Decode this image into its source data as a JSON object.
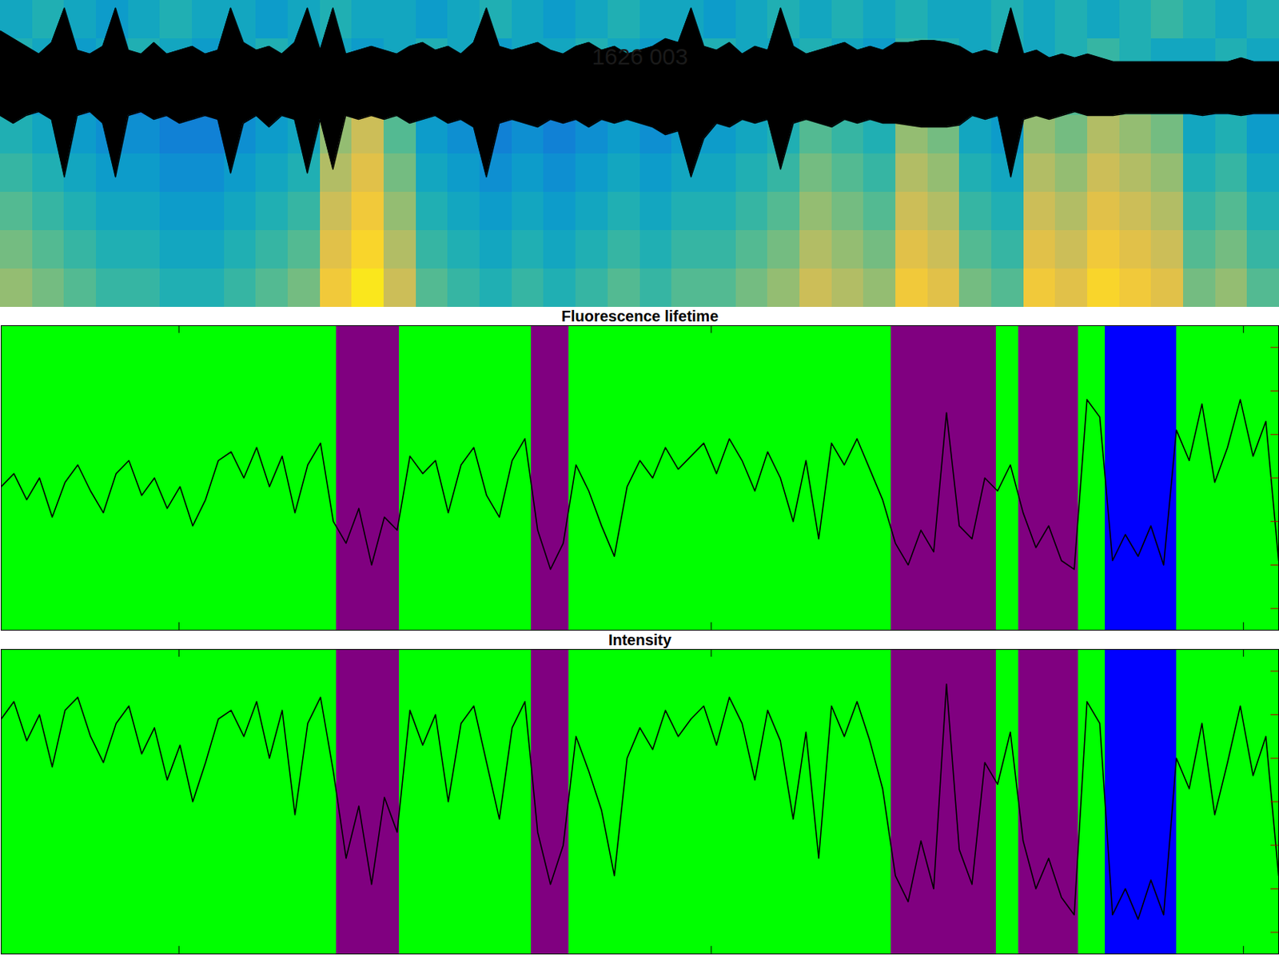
{
  "chart_data": [
    {
      "type": "heatmap",
      "title": "1626 003",
      "tick_labels": false,
      "xlim": [
        0,
        1200
      ],
      "ylim": [
        0,
        8
      ],
      "clim": [
        0,
        1
      ],
      "cells": [
        [
          0.65,
          0.6,
          0.55,
          0.5,
          0.5,
          0.45,
          0.45,
          0.5,
          0.55,
          0.6,
          0.85,
          0.95,
          0.75,
          0.55,
          0.5,
          0.45,
          0.5,
          0.45,
          0.5,
          0.55,
          0.5,
          0.55,
          0.55,
          0.6,
          0.65,
          0.75,
          0.7,
          0.65,
          0.85,
          0.8,
          0.6,
          0.55,
          0.85,
          0.8,
          0.9,
          0.85,
          0.8,
          0.6,
          0.65,
          0.55
        ],
        [
          0.6,
          0.55,
          0.5,
          0.45,
          0.45,
          0.4,
          0.4,
          0.45,
          0.5,
          0.55,
          0.8,
          0.9,
          0.7,
          0.5,
          0.45,
          0.4,
          0.45,
          0.4,
          0.45,
          0.5,
          0.45,
          0.5,
          0.5,
          0.55,
          0.6,
          0.7,
          0.65,
          0.6,
          0.8,
          0.75,
          0.55,
          0.5,
          0.8,
          0.75,
          0.85,
          0.8,
          0.75,
          0.55,
          0.6,
          0.5
        ],
        [
          0.55,
          0.5,
          0.45,
          0.4,
          0.4,
          0.35,
          0.35,
          0.4,
          0.45,
          0.5,
          0.75,
          0.85,
          0.65,
          0.45,
          0.4,
          0.35,
          0.4,
          0.35,
          0.4,
          0.45,
          0.4,
          0.45,
          0.45,
          0.5,
          0.55,
          0.65,
          0.6,
          0.55,
          0.75,
          0.7,
          0.5,
          0.45,
          0.75,
          0.7,
          0.8,
          0.75,
          0.7,
          0.5,
          0.55,
          0.45
        ],
        [
          0.5,
          0.45,
          0.4,
          0.35,
          0.35,
          0.3,
          0.3,
          0.35,
          0.4,
          0.45,
          0.7,
          0.8,
          0.6,
          0.4,
          0.35,
          0.3,
          0.35,
          0.3,
          0.35,
          0.4,
          0.35,
          0.4,
          0.4,
          0.45,
          0.5,
          0.6,
          0.55,
          0.5,
          0.7,
          0.65,
          0.45,
          0.4,
          0.7,
          0.65,
          0.75,
          0.7,
          0.65,
          0.45,
          0.5,
          0.4
        ],
        [
          0.45,
          0.4,
          0.35,
          0.3,
          0.3,
          0.25,
          0.25,
          0.3,
          0.35,
          0.4,
          0.65,
          0.75,
          0.55,
          0.35,
          0.3,
          0.25,
          0.3,
          0.25,
          0.3,
          0.35,
          0.3,
          0.35,
          0.35,
          0.4,
          0.45,
          0.55,
          0.5,
          0.45,
          0.65,
          0.6,
          0.4,
          0.35,
          0.65,
          0.6,
          0.7,
          0.65,
          0.6,
          0.4,
          0.45,
          0.35
        ],
        [
          0.4,
          0.35,
          0.3,
          0.25,
          0.25,
          0.2,
          0.2,
          0.25,
          0.3,
          0.35,
          0.6,
          0.7,
          0.5,
          0.3,
          0.25,
          0.2,
          0.25,
          0.2,
          0.25,
          0.3,
          0.25,
          0.3,
          0.3,
          0.35,
          0.4,
          0.5,
          0.45,
          0.4,
          0.6,
          0.55,
          0.35,
          0.3,
          0.6,
          0.55,
          0.65,
          0.6,
          0.55,
          0.35,
          0.4,
          0.3
        ],
        [
          0.45,
          0.4,
          0.35,
          0.4,
          0.45,
          0.4,
          0.35,
          0.4,
          0.45,
          0.4,
          0.4,
          0.35,
          0.4,
          0.45,
          0.4,
          0.35,
          0.4,
          0.4,
          0.45,
          0.4,
          0.35,
          0.4,
          0.45,
          0.4,
          0.4,
          0.45,
          0.4,
          0.35,
          0.5,
          0.45,
          0.4,
          0.45,
          0.4,
          0.45,
          0.5,
          0.45,
          0.4,
          0.4,
          0.45,
          0.4
        ],
        [
          0.4,
          0.45,
          0.4,
          0.35,
          0.4,
          0.45,
          0.4,
          0.4,
          0.35,
          0.4,
          0.45,
          0.4,
          0.4,
          0.35,
          0.4,
          0.45,
          0.4,
          0.35,
          0.4,
          0.45,
          0.4,
          0.4,
          0.35,
          0.4,
          0.45,
          0.4,
          0.45,
          0.4,
          0.45,
          0.4,
          0.4,
          0.45,
          0.4,
          0.45,
          0.4,
          0.45,
          0.5,
          0.45,
          0.4,
          0.45
        ]
      ],
      "trace": {
        "color": "#000000",
        "x": [
          0,
          12,
          24,
          36,
          48,
          60,
          72,
          84,
          96,
          108,
          120,
          132,
          144,
          156,
          168,
          180,
          192,
          204,
          216,
          228,
          240,
          252,
          264,
          276,
          288,
          300,
          312,
          324,
          336,
          348,
          360,
          372,
          384,
          396,
          408,
          420,
          432,
          444,
          456,
          468,
          480,
          492,
          504,
          516,
          528,
          540,
          552,
          564,
          576,
          588,
          600,
          612,
          624,
          636,
          648,
          660,
          672,
          684,
          696,
          708,
          720,
          732,
          744,
          756,
          768,
          780,
          792,
          804,
          816,
          828,
          840,
          852,
          864,
          876,
          888,
          900,
          912,
          924,
          936,
          948,
          960,
          972,
          984,
          996,
          1008,
          1020,
          1032,
          1044,
          1056,
          1068,
          1080,
          1092,
          1104,
          1116,
          1128,
          1140,
          1152,
          1164,
          1176,
          1188,
          1200
        ],
        "upper": [
          7.2,
          7.0,
          6.8,
          6.6,
          6.9,
          7.8,
          6.7,
          6.6,
          6.8,
          7.8,
          6.7,
          6.6,
          6.9,
          6.6,
          6.7,
          6.8,
          6.6,
          6.7,
          7.8,
          6.9,
          6.7,
          6.8,
          6.6,
          6.9,
          7.8,
          6.7,
          7.8,
          6.6,
          6.7,
          6.8,
          6.7,
          6.6,
          6.8,
          6.9,
          6.7,
          6.8,
          6.6,
          6.9,
          7.8,
          6.8,
          6.7,
          6.8,
          6.9,
          6.7,
          6.6,
          6.8,
          6.9,
          6.7,
          6.8,
          6.6,
          6.7,
          6.8,
          7.0,
          6.9,
          7.8,
          6.8,
          6.7,
          6.9,
          6.6,
          6.8,
          6.7,
          7.8,
          6.8,
          6.6,
          6.7,
          6.8,
          6.9,
          6.7,
          6.8,
          6.7,
          6.9,
          6.9,
          6.95,
          6.95,
          6.9,
          6.8,
          6.6,
          6.7,
          6.6,
          7.8,
          6.6,
          6.7,
          6.5,
          6.6,
          6.5,
          6.6,
          6.5,
          6.4,
          6.4,
          6.4,
          6.4,
          6.4,
          6.4,
          6.4,
          6.4,
          6.4,
          6.4,
          6.5,
          6.4,
          6.4,
          6.4
        ],
        "lower": [
          5.0,
          4.8,
          5.0,
          5.1,
          4.9,
          3.4,
          5.0,
          5.1,
          4.8,
          3.4,
          5.0,
          5.1,
          4.9,
          5.0,
          4.8,
          4.9,
          5.0,
          4.9,
          3.5,
          4.8,
          5.0,
          4.7,
          5.0,
          4.9,
          3.5,
          4.9,
          3.6,
          5.0,
          4.9,
          5.0,
          4.9,
          5.0,
          4.8,
          4.9,
          5.0,
          4.8,
          4.9,
          4.7,
          3.4,
          4.8,
          4.9,
          4.8,
          4.7,
          4.9,
          4.8,
          4.9,
          4.7,
          4.9,
          4.8,
          4.9,
          4.8,
          4.7,
          4.5,
          4.6,
          3.4,
          4.4,
          4.8,
          4.7,
          4.9,
          4.8,
          4.9,
          3.6,
          4.8,
          4.9,
          4.8,
          4.7,
          4.9,
          4.8,
          4.9,
          4.8,
          4.8,
          4.75,
          4.7,
          4.7,
          4.7,
          4.75,
          5.0,
          4.9,
          5.0,
          3.4,
          4.9,
          5.0,
          4.9,
          5.0,
          5.1,
          5.0,
          5.0,
          5.0,
          5.05,
          5.05,
          5.05,
          5.05,
          5.05,
          5.05,
          5.0,
          5.05,
          5.05,
          5.0,
          5.05,
          5.05,
          5.05
        ]
      }
    },
    {
      "type": "line",
      "title": "Fluorescence lifetime",
      "tick_labels": false,
      "color": "#000000",
      "xlim": [
        0,
        1200
      ],
      "xticks": [
        167,
        667,
        1167
      ],
      "ylim": [
        0,
        7
      ],
      "yticks": [
        0.5,
        1.5,
        2.5,
        3.5,
        4.5,
        5.5,
        6.5
      ],
      "bands": [
        {
          "x1": 0,
          "x2": 315,
          "color": "#00ff00"
        },
        {
          "x1": 315,
          "x2": 374,
          "color": "#800080"
        },
        {
          "x1": 374,
          "x2": 498,
          "color": "#00ff00"
        },
        {
          "x1": 498,
          "x2": 533,
          "color": "#800080"
        },
        {
          "x1": 533,
          "x2": 836,
          "color": "#00ff00"
        },
        {
          "x1": 836,
          "x2": 935,
          "color": "#800080"
        },
        {
          "x1": 935,
          "x2": 956,
          "color": "#00ff00"
        },
        {
          "x1": 956,
          "x2": 1012,
          "color": "#800080"
        },
        {
          "x1": 1012,
          "x2": 1037,
          "color": "#00ff00"
        },
        {
          "x1": 1037,
          "x2": 1104,
          "color": "#0000ff"
        },
        {
          "x1": 1104,
          "x2": 1200,
          "color": "#00ff00"
        }
      ],
      "x": [
        0,
        12,
        24,
        36,
        48,
        60,
        72,
        84,
        96,
        108,
        120,
        132,
        144,
        156,
        168,
        180,
        192,
        204,
        216,
        228,
        240,
        252,
        264,
        276,
        288,
        300,
        312,
        324,
        336,
        348,
        360,
        372,
        384,
        396,
        408,
        420,
        432,
        444,
        456,
        468,
        480,
        492,
        504,
        516,
        528,
        540,
        552,
        564,
        576,
        588,
        600,
        612,
        624,
        636,
        648,
        660,
        672,
        684,
        696,
        708,
        720,
        732,
        744,
        756,
        768,
        780,
        792,
        804,
        816,
        828,
        840,
        852,
        864,
        876,
        888,
        900,
        912,
        924,
        936,
        948,
        960,
        972,
        984,
        996,
        1008,
        1020,
        1032,
        1044,
        1056,
        1068,
        1080,
        1092,
        1104,
        1116,
        1128,
        1140,
        1152,
        1164,
        1176,
        1188,
        1200
      ],
      "values": [
        3.3,
        3.6,
        3.0,
        3.5,
        2.6,
        3.4,
        3.8,
        3.2,
        2.7,
        3.6,
        3.9,
        3.1,
        3.5,
        2.8,
        3.3,
        2.4,
        3.0,
        3.9,
        4.1,
        3.5,
        4.2,
        3.3,
        4.0,
        2.7,
        3.8,
        4.3,
        2.5,
        2.0,
        2.8,
        1.5,
        2.6,
        2.3,
        4.0,
        3.6,
        3.9,
        2.7,
        3.8,
        4.2,
        3.1,
        2.6,
        3.9,
        4.4,
        2.3,
        1.4,
        2.0,
        3.8,
        3.2,
        2.4,
        1.7,
        3.3,
        3.9,
        3.5,
        4.2,
        3.7,
        4.0,
        4.3,
        3.6,
        4.4,
        3.9,
        3.2,
        4.1,
        3.5,
        2.5,
        3.9,
        2.1,
        4.3,
        3.8,
        4.4,
        3.7,
        3.0,
        2.0,
        1.5,
        2.3,
        1.8,
        5.0,
        2.4,
        2.1,
        3.5,
        3.2,
        3.8,
        2.7,
        1.9,
        2.4,
        1.6,
        1.4,
        5.3,
        4.9,
        1.6,
        2.2,
        1.7,
        2.4,
        1.5,
        4.6,
        3.9,
        5.2,
        3.4,
        4.2,
        5.3,
        4.0,
        4.8,
        1.6
      ]
    },
    {
      "type": "line",
      "title": "Intensity",
      "tick_labels": false,
      "color": "#000000",
      "xlim": [
        0,
        1200
      ],
      "xticks": [
        167,
        667,
        1167
      ],
      "ylim": [
        0,
        7
      ],
      "yticks": [
        0.5,
        1.5,
        2.5,
        3.5,
        4.5,
        5.5,
        6.5
      ],
      "bands": [
        {
          "x1": 0,
          "x2": 315,
          "color": "#00ff00"
        },
        {
          "x1": 315,
          "x2": 374,
          "color": "#800080"
        },
        {
          "x1": 374,
          "x2": 498,
          "color": "#00ff00"
        },
        {
          "x1": 498,
          "x2": 533,
          "color": "#800080"
        },
        {
          "x1": 533,
          "x2": 836,
          "color": "#00ff00"
        },
        {
          "x1": 836,
          "x2": 935,
          "color": "#800080"
        },
        {
          "x1": 935,
          "x2": 956,
          "color": "#00ff00"
        },
        {
          "x1": 956,
          "x2": 1012,
          "color": "#800080"
        },
        {
          "x1": 1012,
          "x2": 1037,
          "color": "#00ff00"
        },
        {
          "x1": 1037,
          "x2": 1104,
          "color": "#0000ff"
        },
        {
          "x1": 1104,
          "x2": 1200,
          "color": "#00ff00"
        }
      ],
      "x": [
        0,
        12,
        24,
        36,
        48,
        60,
        72,
        84,
        96,
        108,
        120,
        132,
        144,
        156,
        168,
        180,
        192,
        204,
        216,
        228,
        240,
        252,
        264,
        276,
        288,
        300,
        312,
        324,
        336,
        348,
        360,
        372,
        384,
        396,
        408,
        420,
        432,
        444,
        456,
        468,
        480,
        492,
        504,
        516,
        528,
        540,
        552,
        564,
        576,
        588,
        600,
        612,
        624,
        636,
        648,
        660,
        672,
        684,
        696,
        708,
        720,
        732,
        744,
        756,
        768,
        780,
        792,
        804,
        816,
        828,
        840,
        852,
        864,
        876,
        888,
        900,
        912,
        924,
        936,
        948,
        960,
        972,
        984,
        996,
        1008,
        1020,
        1032,
        1044,
        1056,
        1068,
        1080,
        1092,
        1104,
        1116,
        1128,
        1140,
        1152,
        1164,
        1176,
        1188,
        1200
      ],
      "values": [
        5.4,
        5.8,
        4.9,
        5.5,
        4.3,
        5.6,
        5.9,
        5.0,
        4.4,
        5.3,
        5.7,
        4.6,
        5.2,
        4.0,
        4.8,
        3.5,
        4.4,
        5.4,
        5.6,
        5.0,
        5.8,
        4.5,
        5.6,
        3.2,
        5.3,
        5.9,
        4.2,
        2.2,
        3.4,
        1.6,
        3.6,
        2.8,
        5.6,
        4.8,
        5.5,
        3.5,
        5.3,
        5.7,
        4.4,
        3.1,
        5.2,
        5.8,
        2.8,
        1.6,
        2.5,
        5.0,
        4.2,
        3.3,
        1.8,
        4.5,
        5.2,
        4.7,
        5.6,
        5.0,
        5.4,
        5.7,
        4.8,
        5.9,
        5.3,
        4.0,
        5.6,
        4.9,
        3.1,
        5.1,
        2.2,
        5.7,
        5.0,
        5.8,
        4.9,
        3.8,
        1.8,
        1.2,
        2.6,
        1.5,
        6.2,
        2.4,
        1.6,
        4.4,
        3.9,
        5.1,
        2.6,
        1.5,
        2.2,
        1.3,
        0.9,
        5.8,
        5.3,
        0.9,
        1.5,
        0.8,
        1.7,
        0.9,
        4.5,
        3.8,
        5.3,
        3.2,
        4.4,
        5.7,
        4.1,
        5.0,
        1.8
      ]
    }
  ]
}
